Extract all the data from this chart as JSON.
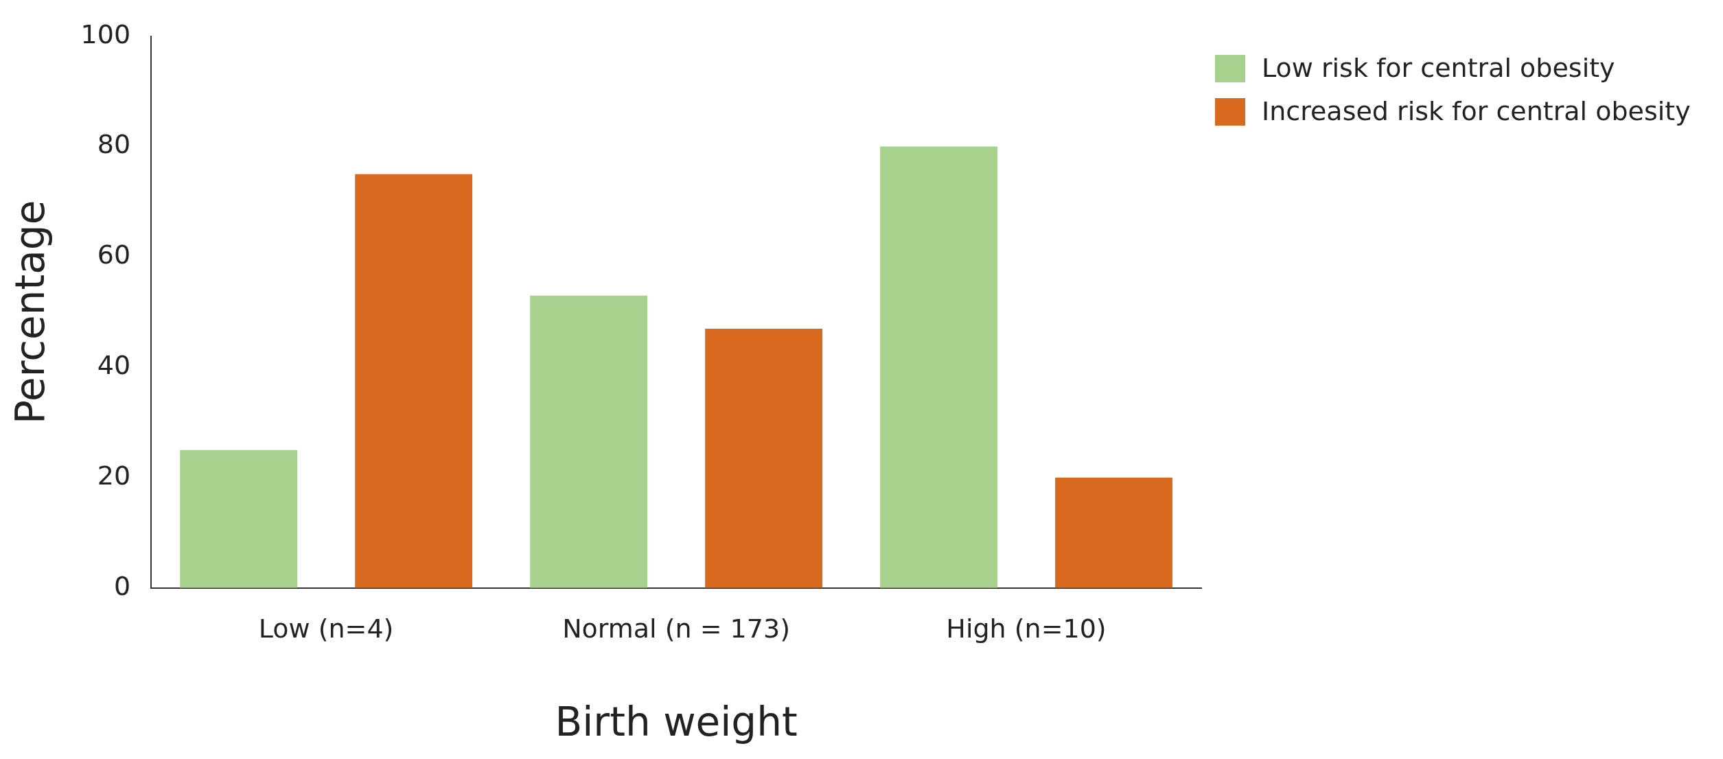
{
  "chart_data": {
    "type": "bar",
    "xlabel": "Birth weight",
    "ylabel": "Percentage",
    "categories": [
      "Low (n=4)",
      "Normal (n = 173)",
      "High (n=10)"
    ],
    "series": [
      {
        "name": "Low risk for central obesity",
        "color": "#a9d18e",
        "values": [
          25,
          53,
          80
        ]
      },
      {
        "name": "Increased risk for central obesity",
        "color": "#d9691f",
        "values": [
          75,
          47,
          20
        ]
      }
    ],
    "ylim": [
      0,
      100
    ],
    "yticks": [
      0,
      20,
      40,
      60,
      80,
      100
    ],
    "grid": false,
    "legend": "top right"
  }
}
